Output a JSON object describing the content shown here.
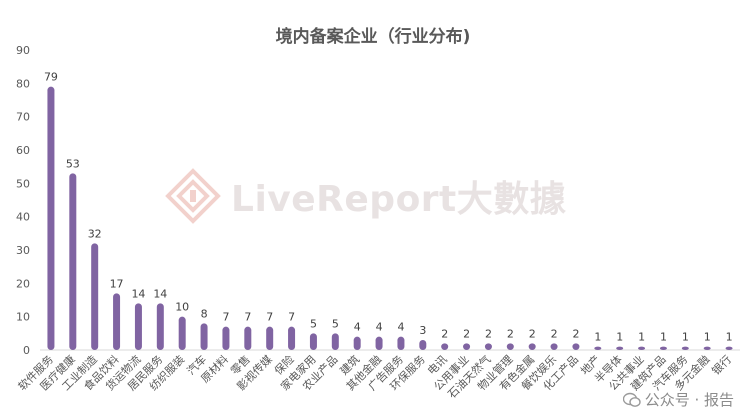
{
  "chart_data": {
    "type": "bar",
    "title": "境内备案企业（行业分布)",
    "xlabel": "",
    "ylabel": "",
    "ylim": [
      0,
      90
    ],
    "yticks": [
      0,
      10,
      20,
      30,
      40,
      50,
      60,
      70,
      80,
      90
    ],
    "grid": false,
    "legend": "none",
    "bar_color": "#8064a2",
    "categories": [
      "软件服务",
      "医疗健康",
      "工业制造",
      "食品饮料",
      "货运物流",
      "居民服务",
      "纺织服装",
      "汽车",
      "原材料",
      "零售",
      "影视传媒",
      "保险",
      "家电家用",
      "农业产品",
      "建筑",
      "其他金融",
      "广告服务",
      "环保服务",
      "电讯",
      "公用事业",
      "石油天然气",
      "物业管理",
      "有色金属",
      "餐饮娱乐",
      "化工产品",
      "地产",
      "半导体",
      "公共事业",
      "建筑产品",
      "汽车服务",
      "多元金融",
      "银行"
    ],
    "values": [
      79,
      53,
      32,
      17,
      14,
      14,
      10,
      8,
      7,
      7,
      7,
      7,
      5,
      5,
      4,
      4,
      4,
      3,
      2,
      2,
      2,
      2,
      2,
      2,
      2,
      1,
      1,
      1,
      1,
      1,
      1,
      1
    ]
  },
  "watermark": {
    "text": "LiveReport大數據"
  },
  "footer": {
    "text": "公众号 · 报告"
  }
}
